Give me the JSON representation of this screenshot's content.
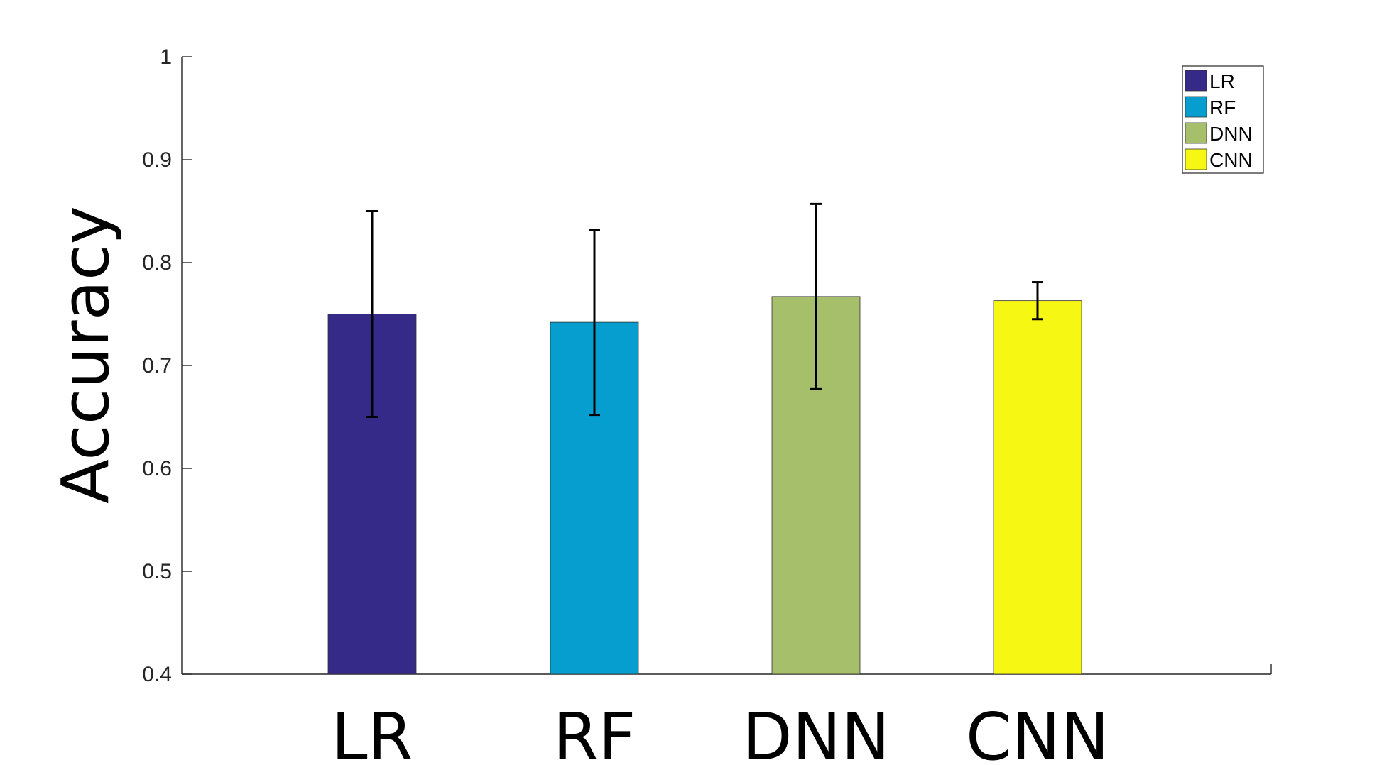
{
  "chart_data": {
    "type": "bar",
    "categories": [
      "LR",
      "RF",
      "DNN",
      "CNN"
    ],
    "values": [
      0.75,
      0.742,
      0.767,
      0.763
    ],
    "error_low": [
      0.65,
      0.652,
      0.677,
      0.745
    ],
    "error_high": [
      0.85,
      0.832,
      0.857,
      0.781
    ],
    "colors": [
      "#352a87",
      "#069ecf",
      "#a5bf6a",
      "#f6f813"
    ],
    "title": "",
    "xlabel": "",
    "ylabel": "Accuracy",
    "ylim": [
      0.4,
      1.0
    ],
    "yticks": [
      "0.4",
      "0.5",
      "0.6",
      "0.7",
      "0.8",
      "0.9",
      "1"
    ],
    "grid": false,
    "legend": {
      "placement": "top-right",
      "entries": [
        "LR",
        "RF",
        "DNN",
        "CNN"
      ]
    }
  }
}
